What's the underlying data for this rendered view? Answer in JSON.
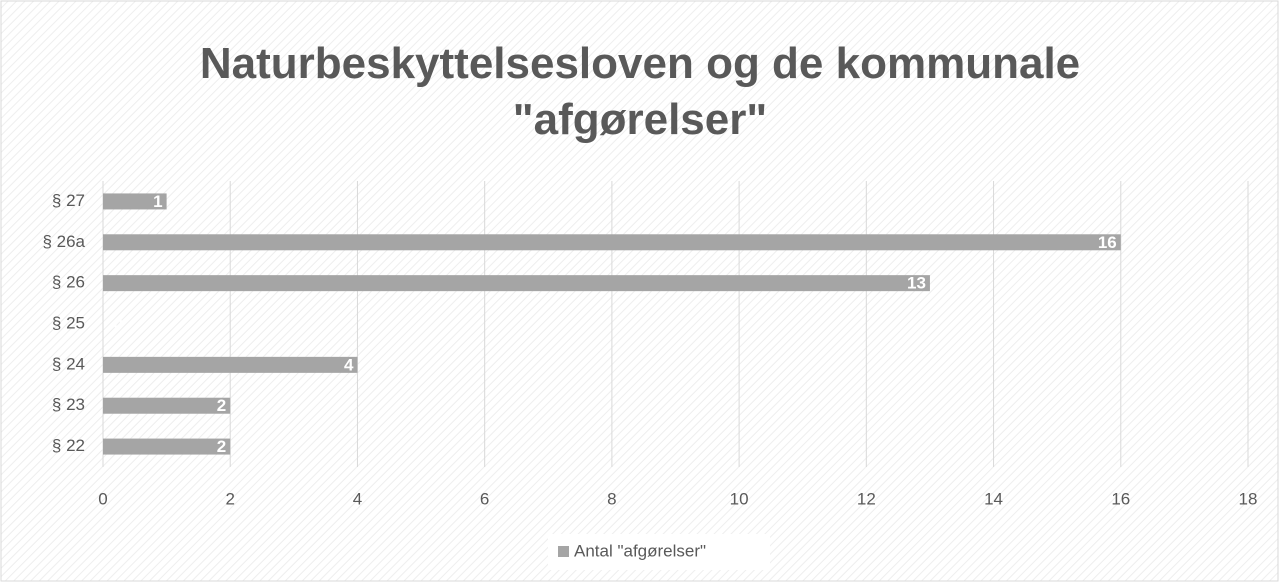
{
  "chart_data": {
    "type": "bar",
    "orientation": "horizontal",
    "title": "Naturbeskyttelsesloven og de kommunale \"afgørelser\"",
    "categories": [
      "§ 27",
      "§ 26a",
      "§ 26",
      "§ 25",
      "§ 24",
      "§ 23",
      "§ 22"
    ],
    "series": [
      {
        "name": "Antal \"afgørelser\"",
        "color": "#a5a5a5",
        "values": [
          1,
          16,
          13,
          0,
          4,
          2,
          2
        ]
      }
    ],
    "xlim": [
      0,
      18
    ],
    "xticks": [
      0,
      2,
      4,
      6,
      8,
      10,
      12,
      14,
      16,
      18
    ],
    "grid": true,
    "legend": "bottom"
  }
}
